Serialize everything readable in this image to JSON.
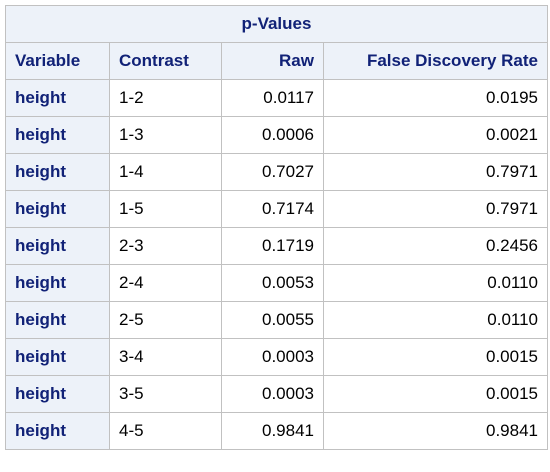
{
  "table": {
    "title": "p-Values",
    "headers": {
      "variable": "Variable",
      "contrast": "Contrast",
      "raw": "Raw",
      "fdr": "False Discovery Rate"
    },
    "rows": [
      {
        "variable": "height",
        "contrast": "1-2",
        "raw": "0.0117",
        "fdr": "0.0195"
      },
      {
        "variable": "height",
        "contrast": "1-3",
        "raw": "0.0006",
        "fdr": "0.0021"
      },
      {
        "variable": "height",
        "contrast": "1-4",
        "raw": "0.7027",
        "fdr": "0.7971"
      },
      {
        "variable": "height",
        "contrast": "1-5",
        "raw": "0.7174",
        "fdr": "0.7971"
      },
      {
        "variable": "height",
        "contrast": "2-3",
        "raw": "0.1719",
        "fdr": "0.2456"
      },
      {
        "variable": "height",
        "contrast": "2-4",
        "raw": "0.0053",
        "fdr": "0.0110"
      },
      {
        "variable": "height",
        "contrast": "2-5",
        "raw": "0.0055",
        "fdr": "0.0110"
      },
      {
        "variable": "height",
        "contrast": "3-4",
        "raw": "0.0003",
        "fdr": "0.0015"
      },
      {
        "variable": "height",
        "contrast": "3-5",
        "raw": "0.0003",
        "fdr": "0.0015"
      },
      {
        "variable": "height",
        "contrast": "4-5",
        "raw": "0.9841",
        "fdr": "0.9841"
      }
    ]
  },
  "colors": {
    "header_background": "#edf2f9",
    "header_text": "#112277",
    "border": "#c1c1c1",
    "cell_text": "#000000"
  }
}
